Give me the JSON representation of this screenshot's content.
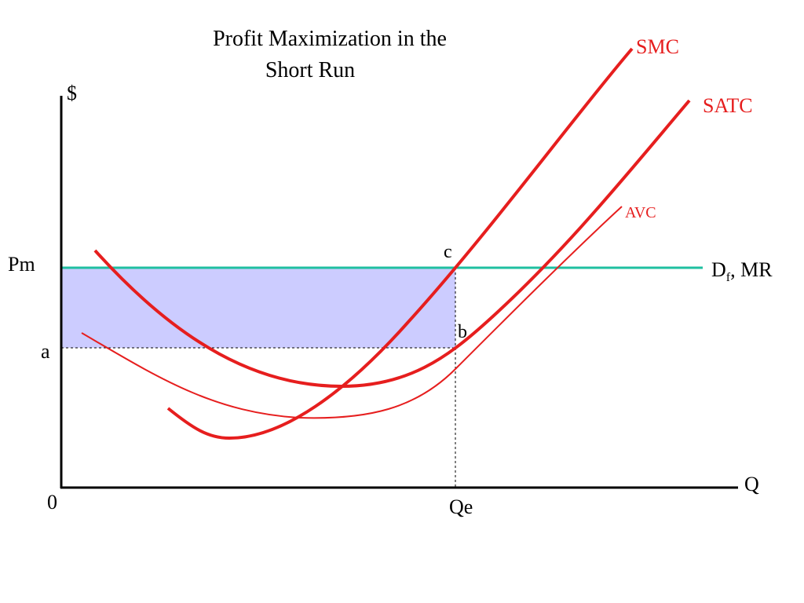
{
  "title": {
    "line1": "Profit Maximization in the",
    "line2": "Short Run"
  },
  "axes": {
    "y_label": "$",
    "x_label": "Q",
    "origin": "0"
  },
  "price_labels": {
    "pm": "Pm",
    "a": "a"
  },
  "quantity_labels": {
    "qe": "Qe"
  },
  "points": {
    "b": "b",
    "c": "c"
  },
  "curves": {
    "smc": "SMC",
    "satc": "SATC",
    "avc": "AVC",
    "demand_main": "D",
    "demand_sub": "f",
    "demand_tail": ", MR"
  },
  "colors": {
    "curve_red": "#e61e1e",
    "demand_teal": "#1fbfa0",
    "profit_fill": "#ccccff",
    "axis": "#000000"
  }
}
